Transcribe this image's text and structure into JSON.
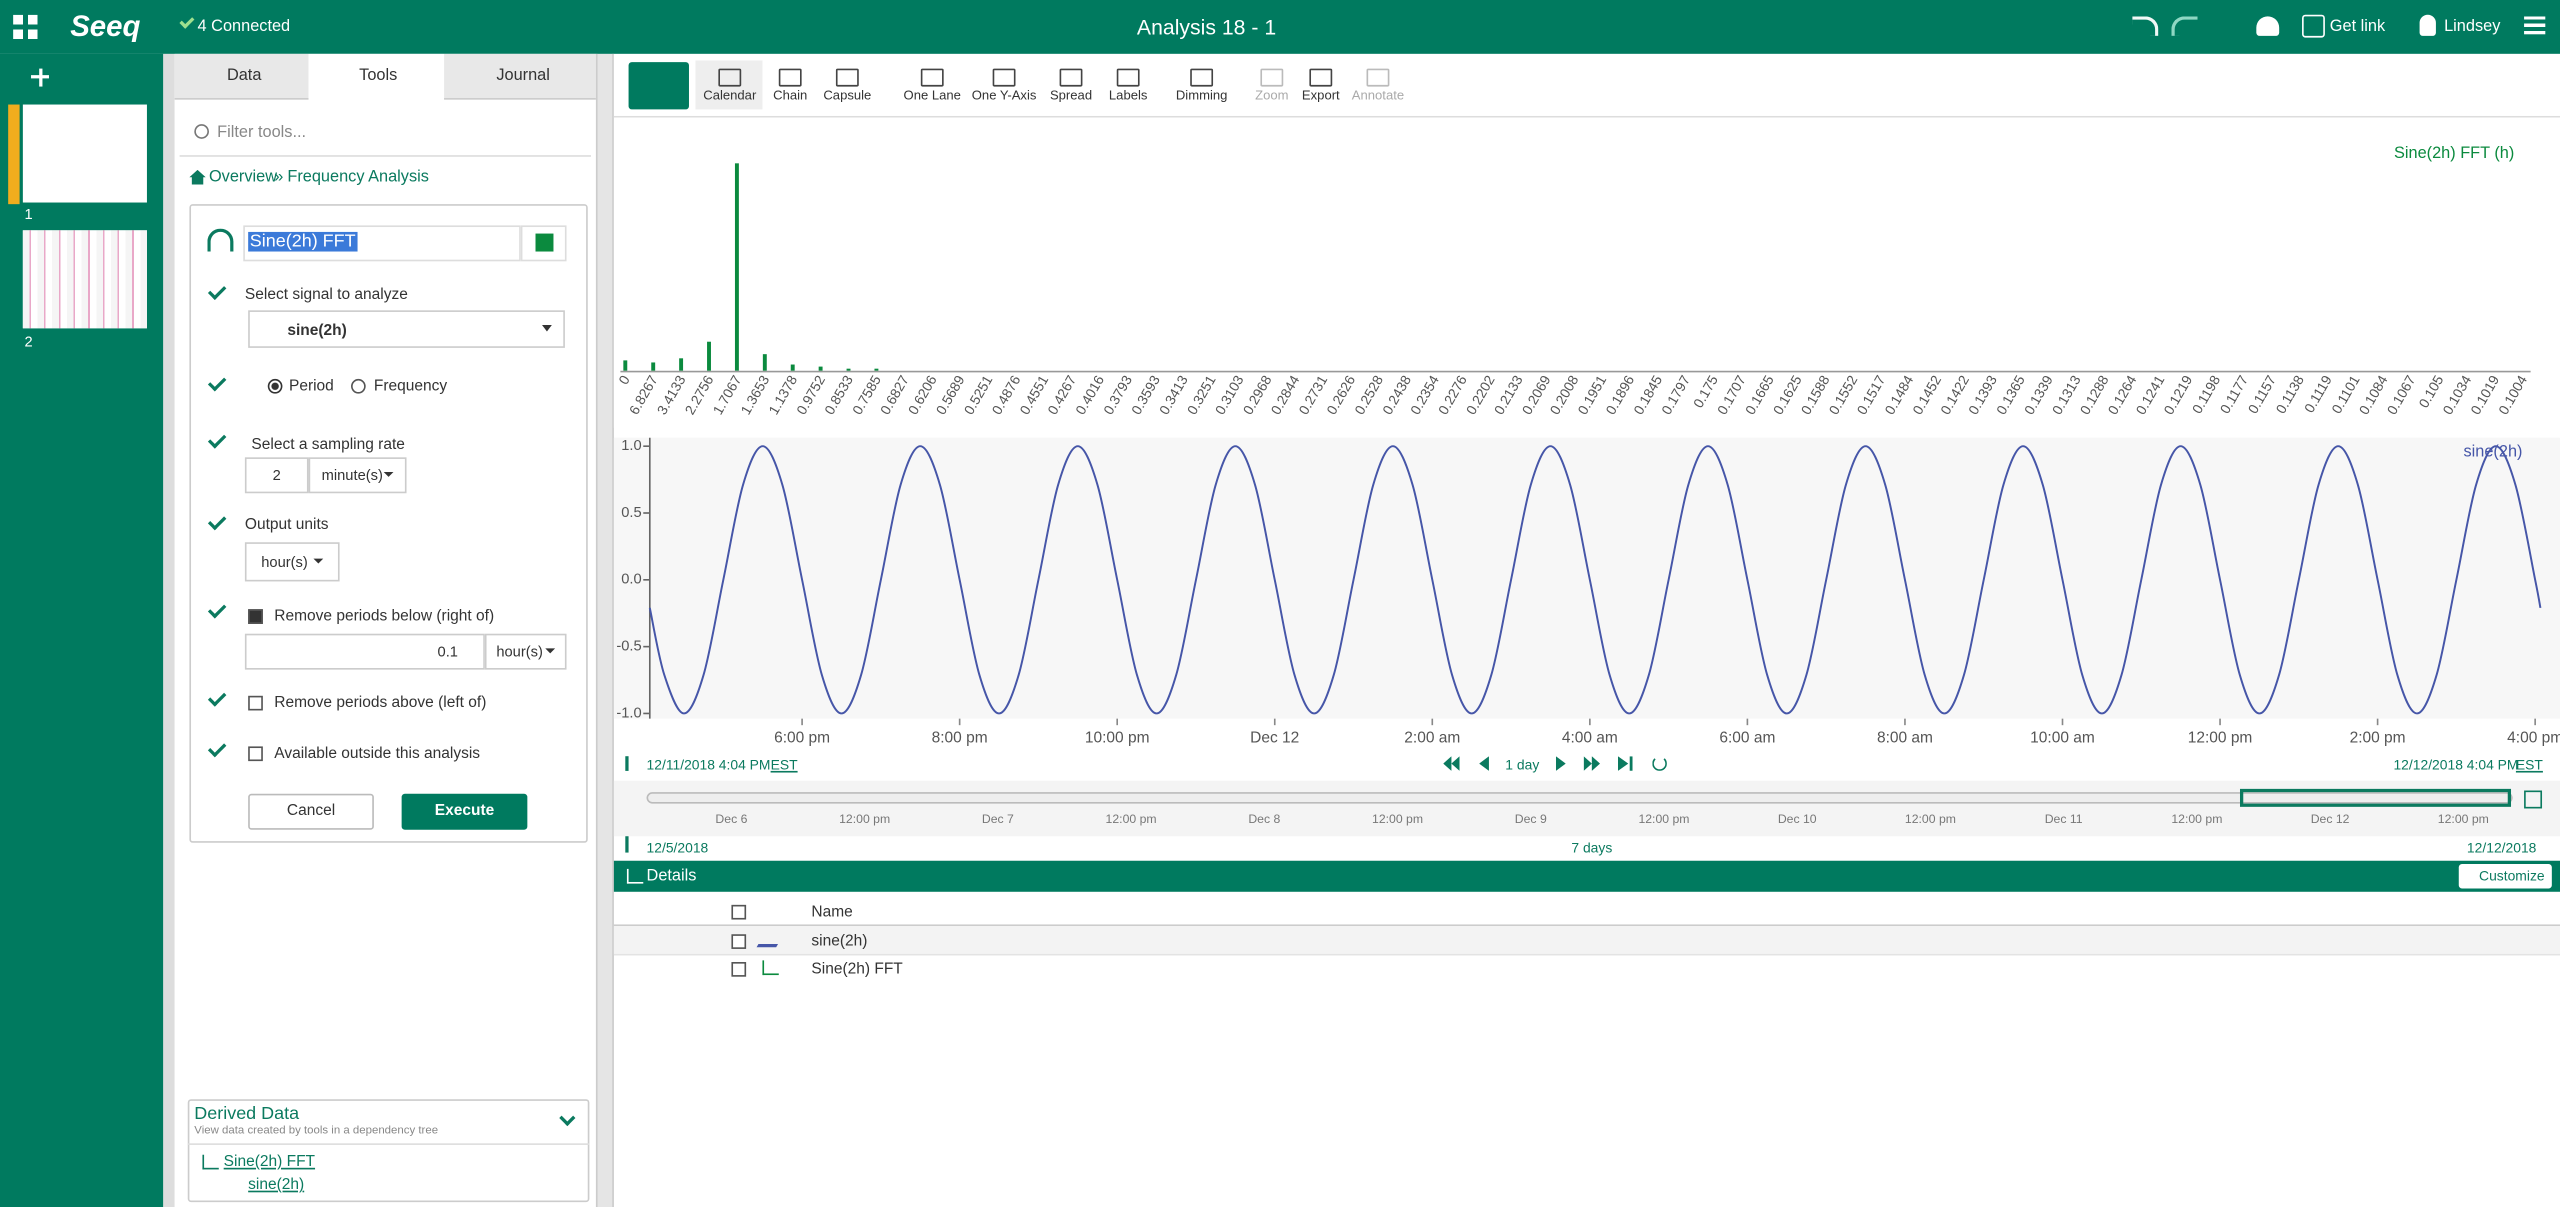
{
  "header": {
    "logo": "Seeq",
    "status": "4 Connected",
    "title": "Analysis 18 - 1",
    "get_link": "Get link",
    "user": "Lindsey"
  },
  "worksheets": [
    "1",
    "2"
  ],
  "panel": {
    "tabs": [
      "Data",
      "Tools",
      "Journal"
    ],
    "filter_placeholder": "Filter tools...",
    "breadcrumb": [
      "Overview",
      "»",
      "Frequency Analysis"
    ]
  },
  "tool": {
    "name": "Sine(2h) FFT",
    "signal_label": "Select signal to analyze",
    "signal": "sine(2h)",
    "mode_options": [
      "Period",
      "Frequency"
    ],
    "sampling_label": "Select a sampling rate",
    "sampling_rate": "2",
    "sampling_unit": "minute(s)",
    "output_label": "Output units",
    "output_unit": "hour(s)",
    "remove_below_label": "Remove periods below (right of)",
    "remove_below_value": "0.1",
    "remove_below_unit": "hour(s)",
    "remove_above_label": "Remove periods above (left of)",
    "available_label": "Available outside this analysis",
    "buttons": [
      "Cancel",
      "Execute"
    ]
  },
  "derived": {
    "title": "Derived Data",
    "subtitle": "View data created by tools in a dependency tree",
    "items": [
      "Sine(2h) FFT",
      "sine(2h)"
    ]
  },
  "toolbar": [
    "Calendar",
    "Chain",
    "Capsule",
    "One Lane",
    "One Y-Axis",
    "Spread",
    "Labels",
    "Dimming",
    "Zoom",
    "Export",
    "Annotate"
  ],
  "chart_data": [
    {
      "type": "bar",
      "categories": [
        "0",
        "6.8267",
        "3.4133",
        "2.2756",
        "1.7067",
        "1.3653",
        "1.1378",
        "0.9752",
        "0.8533",
        "0.7585",
        "0.6827",
        "0.6206",
        "0.5689",
        "0.5251",
        "0.4876",
        "0.4551",
        "0.4267",
        "0.4016",
        "0.3793",
        "0.3593",
        "0.3413",
        "0.3251",
        "0.3103",
        "0.2968",
        "0.2844",
        "0.2731",
        "0.2626",
        "0.2528",
        "0.2438",
        "0.2354",
        "0.2276",
        "0.2202",
        "0.2133",
        "0.2069",
        "0.2008",
        "0.1951",
        "0.1896",
        "0.1845",
        "0.1797",
        "0.175",
        "0.1707",
        "0.1665",
        "0.1625",
        "0.1588",
        "0.1552",
        "0.1517",
        "0.1484",
        "0.1452",
        "0.1422",
        "0.1393",
        "0.1365",
        "0.1339",
        "0.1313",
        "0.1288",
        "0.1264",
        "0.1241",
        "0.1219",
        "0.1198",
        "0.1177",
        "0.1157",
        "0.1138",
        "0.1119",
        "0.1101",
        "0.1084",
        "0.1067",
        "0.105",
        "0.1034",
        "0.1019",
        "0.1004"
      ],
      "series": [
        {
          "name": "Sine(2h) FFT (h)",
          "color": "#0b8a3e",
          "values": [
            5,
            4,
            6,
            14,
            100,
            8,
            3,
            2,
            1,
            1,
            0,
            0,
            0,
            0,
            0,
            0,
            0,
            0,
            0,
            0,
            0,
            0,
            0,
            0,
            0,
            0,
            0,
            0,
            0,
            0,
            0,
            0,
            0,
            0,
            0,
            0,
            0,
            0,
            0,
            0,
            0,
            0,
            0,
            0,
            0,
            0,
            0,
            0,
            0,
            0,
            0,
            0,
            0,
            0,
            0,
            0,
            0,
            0,
            0,
            0,
            0,
            0,
            0,
            0,
            0,
            0,
            0,
            0,
            0
          ]
        }
      ],
      "ylim": [
        0,
        100
      ]
    },
    {
      "type": "line",
      "x": [
        "2018-12-11T16:04",
        "2018-12-11T16:15",
        "2018-12-11T16:30",
        "2018-12-11T16:45",
        "2018-12-11T17:00",
        "2018-12-11T17:15",
        "2018-12-11T17:30",
        "2018-12-11T17:45",
        "2018-12-11T18:00",
        "2018-12-11T18:15",
        "2018-12-11T18:30",
        "2018-12-11T18:45",
        "2018-12-11T19:00",
        "2018-12-11T19:15",
        "2018-12-11T19:30",
        "2018-12-11T19:45",
        "2018-12-11T20:00",
        "2018-12-11T20:15",
        "2018-12-11T20:30",
        "2018-12-11T20:45",
        "2018-12-11T21:00",
        "2018-12-11T21:15",
        "2018-12-11T21:30",
        "2018-12-11T21:45",
        "2018-12-11T22:00",
        "2018-12-11T22:15",
        "2018-12-11T22:30",
        "2018-12-11T22:45",
        "2018-12-11T23:00",
        "2018-12-11T23:15",
        "2018-12-11T23:30",
        "2018-12-11T23:45",
        "2018-12-12T00:00",
        "2018-12-12T00:15",
        "2018-12-12T00:30",
        "2018-12-12T00:45",
        "2018-12-12T01:00",
        "2018-12-12T01:15",
        "2018-12-12T01:30",
        "2018-12-12T01:45",
        "2018-12-12T02:00",
        "2018-12-12T02:15",
        "2018-12-12T02:30",
        "2018-12-12T02:45",
        "2018-12-12T03:00",
        "2018-12-12T03:15",
        "2018-12-12T03:30",
        "2018-12-12T03:45",
        "2018-12-12T04:00",
        "2018-12-12T04:15",
        "2018-12-12T04:30",
        "2018-12-12T04:45",
        "2018-12-12T05:00",
        "2018-12-12T05:15",
        "2018-12-12T05:30",
        "2018-12-12T05:45",
        "2018-12-12T06:00",
        "2018-12-12T06:15",
        "2018-12-12T06:30",
        "2018-12-12T06:45",
        "2018-12-12T07:00",
        "2018-12-12T07:15",
        "2018-12-12T07:30",
        "2018-12-12T07:45",
        "2018-12-12T08:00",
        "2018-12-12T08:15",
        "2018-12-12T08:30",
        "2018-12-12T08:45",
        "2018-12-12T09:00",
        "2018-12-12T09:15",
        "2018-12-12T09:30",
        "2018-12-12T09:45",
        "2018-12-12T10:00",
        "2018-12-12T10:15",
        "2018-12-12T10:30",
        "2018-12-12T10:45",
        "2018-12-12T11:00",
        "2018-12-12T11:15",
        "2018-12-12T11:30",
        "2018-12-12T11:45",
        "2018-12-12T12:00",
        "2018-12-12T12:15",
        "2018-12-12T12:30",
        "2018-12-12T12:45",
        "2018-12-12T13:00",
        "2018-12-12T13:15",
        "2018-12-12T13:30",
        "2018-12-12T13:45",
        "2018-12-12T14:00",
        "2018-12-12T14:15",
        "2018-12-12T14:30",
        "2018-12-12T14:45",
        "2018-12-12T15:00",
        "2018-12-12T15:15",
        "2018-12-12T15:30",
        "2018-12-12T15:45",
        "2018-12-12T16:00",
        "2018-12-12T16:04"
      ],
      "series": [
        {
          "name": "sine(2h)",
          "color": "#4656a8",
          "values": [
            -0.21,
            -0.71,
            -1,
            -0.71,
            0,
            0.71,
            1,
            0.71,
            0,
            -0.71,
            -1,
            -0.71,
            0,
            0.71,
            1,
            0.71,
            0,
            -0.71,
            -1,
            -0.71,
            0,
            0.71,
            1,
            0.71,
            0,
            -0.71,
            -1,
            -0.71,
            0,
            0.71,
            1,
            0.71,
            0,
            -0.71,
            -1,
            -0.71,
            0,
            0.71,
            1,
            0.71,
            0,
            -0.71,
            -1,
            -0.71,
            0,
            0.71,
            1,
            0.71,
            0,
            -0.71,
            -1,
            -0.71,
            0,
            0.71,
            1,
            0.71,
            0,
            -0.71,
            -1,
            -0.71,
            0,
            0.71,
            1,
            0.71,
            0,
            -0.71,
            -1,
            -0.71,
            0,
            0.71,
            1,
            0.71,
            0,
            -0.71,
            -1,
            -0.71,
            0,
            0.71,
            1,
            0.71,
            0,
            -0.71,
            -1,
            -0.71,
            0,
            0.71,
            1,
            0.71,
            0,
            -0.71,
            -1,
            -0.71,
            0,
            0.71,
            1,
            0.71,
            0,
            -0.21
          ]
        }
      ],
      "xlim": [
        "2018-12-11T16:04",
        "2018-12-12T16:04"
      ],
      "xticks": [
        {
          "value": "2018-12-11T18:00",
          "label": "6:00 pm"
        },
        {
          "value": "2018-12-11T20:00",
          "label": "8:00 pm"
        },
        {
          "value": "2018-12-11T22:00",
          "label": "10:00 pm"
        },
        {
          "value": "2018-12-12T00:00",
          "label": "Dec 12"
        },
        {
          "value": "2018-12-12T02:00",
          "label": "2:00 am"
        },
        {
          "value": "2018-12-12T04:00",
          "label": "4:00 am"
        },
        {
          "value": "2018-12-12T06:00",
          "label": "6:00 am"
        },
        {
          "value": "2018-12-12T08:00",
          "label": "8:00 am"
        },
        {
          "value": "2018-12-12T10:00",
          "label": "10:00 am"
        },
        {
          "value": "2018-12-12T12:00",
          "label": "12:00 pm"
        },
        {
          "value": "2018-12-12T14:00",
          "label": "2:00 pm"
        },
        {
          "value": "2018-12-12T16:00",
          "label": "4:00 pm"
        }
      ],
      "ylim": [
        -1.1,
        1.1
      ],
      "yticks": [
        {
          "value": -1,
          "label": "-1.0"
        },
        -0.5,
        {
          "value": 0,
          "label": "0.0"
        },
        0.5,
        {
          "value": 1,
          "label": "1.0"
        }
      ]
    }
  ],
  "timebar": {
    "start": "12/11/2018 4:04 PM",
    "start_zone": "EST",
    "step": "1 day",
    "end": "12/12/2018 4:04 PM",
    "end_zone": "EST"
  },
  "navigator": {
    "labels": [
      "Dec 6",
      "12:00 pm",
      "Dec 7",
      "12:00 pm",
      "Dec 8",
      "12:00 pm",
      "Dec 9",
      "12:00 pm",
      "Dec 10",
      "12:00 pm",
      "Dec 11",
      "12:00 pm",
      "Dec 12",
      "12:00 pm"
    ],
    "start": "12/5/2018",
    "span": "7 days",
    "end": "12/12/2018"
  },
  "details": {
    "title": "Details",
    "customize": "Customize",
    "column": "Name",
    "rows": [
      "sine(2h)",
      "Sine(2h) FFT"
    ]
  }
}
